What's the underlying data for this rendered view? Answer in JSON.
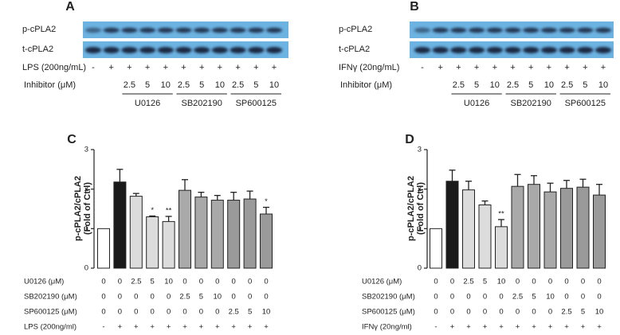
{
  "panels": [
    {
      "label": "A",
      "blot_rows": [
        "p-cPLA2",
        "t-cPLA2"
      ],
      "treatment": {
        "label": "LPS (200ng/mL)",
        "values": [
          "-",
          "+",
          "+",
          "+",
          "+",
          "+",
          "+",
          "+",
          "+",
          "+",
          "+"
        ]
      },
      "inhibitor": {
        "label": "Inhibitor (μM)",
        "values": [
          null,
          null,
          2.5,
          5,
          10,
          2.5,
          5,
          10,
          2.5,
          5,
          10
        ]
      },
      "groups": [
        "U0126",
        "SB202190",
        "SP600125"
      ]
    },
    {
      "label": "B",
      "blot_rows": [
        "p-cPLA2",
        "t-cPLA2"
      ],
      "treatment": {
        "label": "IFNγ (20ng/mL)",
        "values": [
          "-",
          "+",
          "+",
          "+",
          "+",
          "+",
          "+",
          "+",
          "+",
          "+",
          "+"
        ]
      },
      "inhibitor": {
        "label": "Inhibitor (μM)",
        "values": [
          null,
          null,
          2.5,
          5,
          10,
          2.5,
          5,
          10,
          2.5,
          5,
          10
        ]
      },
      "groups": [
        "U0126",
        "SB202190",
        "SP600125"
      ]
    }
  ],
  "chart_data": [
    {
      "type": "bar",
      "panel_label": "C",
      "y_label": "p-cPLA2/cPLA2",
      "y_label_unit": "(Fold of Ctrl)",
      "ylim": [
        0,
        3
      ],
      "yticks": [
        0,
        1,
        2,
        3
      ],
      "values": [
        1.0,
        2.18,
        1.82,
        1.3,
        1.18,
        1.97,
        1.8,
        1.72,
        1.72,
        1.75,
        1.37
      ],
      "errors": [
        0,
        0.32,
        0.07,
        0.02,
        0.13,
        0.27,
        0.12,
        0.12,
        0.2,
        0.2,
        0.17
      ],
      "colors": [
        "#ffffff",
        "#1a1a1a",
        "#dcdcdc",
        "#dcdcdc",
        "#dcdcdc",
        "#a9a9a9",
        "#a9a9a9",
        "#a9a9a9",
        "#9a9a9a",
        "#9a9a9a",
        "#9a9a9a"
      ],
      "significance": [
        null,
        null,
        null,
        "*",
        "**",
        null,
        null,
        null,
        null,
        null,
        "*"
      ],
      "conditions": [
        {
          "label": "U0126 (μM)",
          "values": [
            0,
            0,
            2.5,
            5,
            10,
            0,
            0,
            0,
            0,
            0,
            0
          ]
        },
        {
          "label": "SB202190 (μM)",
          "values": [
            0,
            0,
            0,
            0,
            0,
            2.5,
            5,
            10,
            0,
            0,
            0
          ]
        },
        {
          "label": "SP600125 (μM)",
          "values": [
            0,
            0,
            0,
            0,
            0,
            0,
            0,
            0,
            2.5,
            5,
            10
          ]
        },
        {
          "label": "LPS (200ng/ml)",
          "values": [
            "-",
            "+",
            "+",
            "+",
            "+",
            "+",
            "+",
            "+",
            "+",
            "+",
            "+"
          ]
        }
      ]
    },
    {
      "type": "bar",
      "panel_label": "D",
      "y_label": "p-cPLA2/cPLA2",
      "y_label_unit": "(Fold of Ctrl)",
      "ylim": [
        0,
        3
      ],
      "yticks": [
        0,
        1,
        2,
        3
      ],
      "values": [
        1.0,
        2.2,
        1.98,
        1.6,
        1.05,
        2.07,
        2.12,
        1.93,
        2.02,
        2.05,
        1.85
      ],
      "errors": [
        0,
        0.28,
        0.22,
        0.1,
        0.18,
        0.3,
        0.22,
        0.22,
        0.2,
        0.2,
        0.27
      ],
      "colors": [
        "#ffffff",
        "#1a1a1a",
        "#dcdcdc",
        "#dcdcdc",
        "#dcdcdc",
        "#a9a9a9",
        "#a9a9a9",
        "#a9a9a9",
        "#9a9a9a",
        "#9a9a9a",
        "#9a9a9a"
      ],
      "significance": [
        null,
        null,
        null,
        null,
        "**",
        null,
        null,
        null,
        null,
        null,
        null
      ],
      "conditions": [
        {
          "label": "U0126 (μM)",
          "values": [
            0,
            0,
            2.5,
            5,
            10,
            0,
            0,
            0,
            0,
            0,
            0
          ]
        },
        {
          "label": "SB202190 (μM)",
          "values": [
            0,
            0,
            0,
            0,
            0,
            2.5,
            5,
            10,
            0,
            0,
            0
          ]
        },
        {
          "label": "SP600125 (μM)",
          "values": [
            0,
            0,
            0,
            0,
            0,
            0,
            0,
            0,
            2.5,
            5,
            10
          ]
        },
        {
          "label": "IFNγ (20ng/ml)",
          "values": [
            "-",
            "+",
            "+",
            "+",
            "+",
            "+",
            "+",
            "+",
            "+",
            "+",
            "+"
          ]
        }
      ]
    }
  ]
}
